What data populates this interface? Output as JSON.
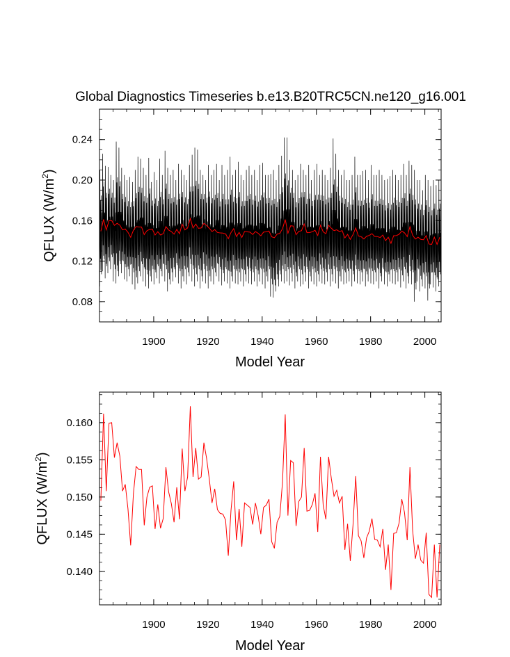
{
  "title": "Global Diagnostics Timeseries b.e13.B20TRC5CN.ne120_g16.001",
  "chart_data": [
    {
      "type": "line",
      "xlabel": "Model Year",
      "ylabel_main": "QFLUX (W/m",
      "ylabel_sup": "2",
      "ylabel_close": ")",
      "xlim": [
        1880,
        2006
      ],
      "ylim": [
        0.06,
        0.27
      ],
      "xticks": [
        1900,
        1920,
        1940,
        1960,
        1980,
        2000
      ],
      "yticks": [
        0.08,
        0.12,
        0.16,
        0.2,
        0.24
      ],
      "ytick_labels": [
        "0.08",
        "0.12",
        "0.16",
        "0.20",
        "0.24"
      ],
      "series": [
        {
          "color": "#000000",
          "kind": "monthly",
          "years": [
            1880,
            1881,
            1882,
            1883,
            1884,
            1885,
            1886,
            1887,
            1888,
            1889,
            1890,
            1891,
            1892,
            1893,
            1894,
            1895,
            1896,
            1897,
            1898,
            1899,
            1900,
            1901,
            1902,
            1903,
            1904,
            1905,
            1906,
            1907,
            1908,
            1909,
            1910,
            1911,
            1912,
            1913,
            1914,
            1915,
            1916,
            1917,
            1918,
            1919,
            1920,
            1921,
            1922,
            1923,
            1924,
            1925,
            1926,
            1927,
            1928,
            1929,
            1930,
            1931,
            1932,
            1933,
            1934,
            1935,
            1936,
            1937,
            1938,
            1939,
            1940,
            1941,
            1942,
            1943,
            1944,
            1945,
            1946,
            1947,
            1948,
            1949,
            1950,
            1951,
            1952,
            1953,
            1954,
            1955,
            1956,
            1957,
            1958,
            1959,
            1960,
            1961,
            1962,
            1963,
            1964,
            1965,
            1966,
            1967,
            1968,
            1969,
            1970,
            1971,
            1972,
            1973,
            1974,
            1975,
            1976,
            1977,
            1978,
            1979,
            1980,
            1981,
            1982,
            1983,
            1984,
            1985,
            1986,
            1987,
            1988,
            1989,
            1990,
            1991,
            1992,
            1993,
            1994,
            1995,
            1996,
            1997,
            1998,
            1999,
            2000,
            2001,
            2002,
            2003,
            2004,
            2005
          ],
          "maxima": [
            0.21,
            0.226,
            0.214,
            0.213,
            0.205,
            0.2,
            0.238,
            0.232,
            0.212,
            0.205,
            0.2,
            0.203,
            0.198,
            0.21,
            0.223,
            0.221,
            0.212,
            0.205,
            0.222,
            0.198,
            0.208,
            0.2,
            0.221,
            0.205,
            0.229,
            0.212,
            0.205,
            0.21,
            0.2,
            0.216,
            0.21,
            0.205,
            0.2,
            0.215,
            0.225,
            0.232,
            0.23,
            0.21,
            0.205,
            0.2,
            0.215,
            0.205,
            0.21,
            0.216,
            0.2,
            0.215,
            0.205,
            0.21,
            0.223,
            0.205,
            0.21,
            0.218,
            0.205,
            0.2,
            0.21,
            0.214,
            0.205,
            0.21,
            0.2,
            0.215,
            0.217,
            0.205,
            0.205,
            0.206,
            0.21,
            0.2,
            0.215,
            0.224,
            0.242,
            0.242,
            0.22,
            0.21,
            0.2,
            0.205,
            0.216,
            0.21,
            0.205,
            0.215,
            0.2,
            0.21,
            0.216,
            0.205,
            0.21,
            0.205,
            0.2,
            0.212,
            0.241,
            0.226,
            0.21,
            0.205,
            0.21,
            0.2,
            0.2,
            0.205,
            0.223,
            0.205,
            0.205,
            0.209,
            0.21,
            0.2,
            0.215,
            0.205,
            0.205,
            0.21,
            0.205,
            0.2,
            0.201,
            0.204,
            0.21,
            0.205,
            0.2,
            0.205,
            0.216,
            0.205,
            0.219,
            0.215,
            0.21,
            0.2,
            0.2,
            0.19,
            0.205,
            0.2,
            0.194,
            0.2,
            0.195,
            0.2
          ],
          "minima": [
            0.095,
            0.11,
            0.103,
            0.108,
            0.112,
            0.1,
            0.098,
            0.105,
            0.108,
            0.102,
            0.1,
            0.105,
            0.097,
            0.092,
            0.098,
            0.105,
            0.1,
            0.095,
            0.093,
            0.1,
            0.097,
            0.103,
            0.098,
            0.105,
            0.1,
            0.09,
            0.097,
            0.1,
            0.104,
            0.098,
            0.093,
            0.1,
            0.097,
            0.105,
            0.1,
            0.095,
            0.1,
            0.093,
            0.1,
            0.098,
            0.093,
            0.1,
            0.097,
            0.105,
            0.1,
            0.096,
            0.1,
            0.098,
            0.093,
            0.1,
            0.098,
            0.097,
            0.1,
            0.095,
            0.1,
            0.098,
            0.097,
            0.1,
            0.095,
            0.1,
            0.097,
            0.093,
            0.1,
            0.085,
            0.084,
            0.09,
            0.095,
            0.1,
            0.098,
            0.1,
            0.096,
            0.1,
            0.093,
            0.1,
            0.095,
            0.097,
            0.1,
            0.093,
            0.1,
            0.097,
            0.095,
            0.1,
            0.098,
            0.097,
            0.1,
            0.095,
            0.1,
            0.098,
            0.093,
            0.1,
            0.097,
            0.098,
            0.1,
            0.095,
            0.1,
            0.098,
            0.097,
            0.1,
            0.095,
            0.1,
            0.098,
            0.097,
            0.1,
            0.093,
            0.1,
            0.097,
            0.095,
            0.1,
            0.098,
            0.097,
            0.1,
            0.094,
            0.1,
            0.093,
            0.098,
            0.097,
            0.08,
            0.1,
            0.09,
            0.095,
            0.093,
            0.081,
            0.097,
            0.094,
            0.09,
            0.095
          ]
        },
        {
          "color": "#ff0000",
          "kind": "annual"
        }
      ]
    },
    {
      "type": "line",
      "xlabel": "Model Year",
      "ylabel_main": "QFLUX (W/m",
      "ylabel_sup": "2",
      "ylabel_close": ")",
      "xlim": [
        1880,
        2006
      ],
      "ylim": [
        0.1355,
        0.1641
      ],
      "xticks": [
        1900,
        1920,
        1940,
        1960,
        1980,
        2000
      ],
      "yticks": [
        0.14,
        0.145,
        0.15,
        0.155,
        0.16
      ],
      "ytick_labels": [
        "0.140",
        "0.145",
        "0.150",
        "0.155",
        "0.160"
      ],
      "series": [
        {
          "color": "#ff0000",
          "x": [
            1880,
            1881,
            1882,
            1883,
            1884,
            1885,
            1886,
            1887,
            1888,
            1889,
            1890,
            1891,
            1892,
            1893,
            1894,
            1895,
            1896,
            1897,
            1898,
            1899,
            1900,
            1901,
            1902,
            1903,
            1904,
            1905,
            1906,
            1907,
            1908,
            1909,
            1910,
            1911,
            1912,
            1913,
            1914,
            1915,
            1916,
            1917,
            1918,
            1919,
            1920,
            1921,
            1922,
            1923,
            1924,
            1925,
            1926,
            1927,
            1928,
            1929,
            1930,
            1931,
            1932,
            1933,
            1934,
            1935,
            1936,
            1937,
            1938,
            1939,
            1940,
            1941,
            1942,
            1943,
            1944,
            1945,
            1946,
            1947,
            1948,
            1949,
            1950,
            1951,
            1952,
            1953,
            1954,
            1955,
            1956,
            1957,
            1958,
            1959,
            1960,
            1961,
            1962,
            1963,
            1964,
            1965,
            1966,
            1967,
            1968,
            1969,
            1970,
            1971,
            1972,
            1973,
            1974,
            1975,
            1976,
            1977,
            1978,
            1979,
            1980,
            1981,
            1982,
            1983,
            1984,
            1985,
            1986,
            1987,
            1988,
            1989,
            1990,
            1991,
            1992,
            1993,
            1994,
            1995,
            1996,
            1997,
            1998,
            1999,
            2000,
            2001,
            2002,
            2003,
            2004,
            2005
          ],
          "values": [
            0.1495,
            0.1612,
            0.1508,
            0.1599,
            0.16,
            0.1553,
            0.1573,
            0.1555,
            0.1508,
            0.1517,
            0.1484,
            0.1435,
            0.1504,
            0.1541,
            0.1537,
            0.1537,
            0.1462,
            0.15,
            0.1513,
            0.1515,
            0.1457,
            0.149,
            0.1458,
            0.1471,
            0.154,
            0.1507,
            0.1491,
            0.1466,
            0.1513,
            0.147,
            0.1565,
            0.1508,
            0.1527,
            0.1622,
            0.1527,
            0.1566,
            0.1524,
            0.1527,
            0.1573,
            0.1552,
            0.1524,
            0.1492,
            0.1511,
            0.1483,
            0.1478,
            0.1477,
            0.1469,
            0.1421,
            0.1482,
            0.1521,
            0.1442,
            0.1484,
            0.1433,
            0.1492,
            0.1489,
            0.1486,
            0.1463,
            0.1492,
            0.1475,
            0.145,
            0.1486,
            0.1489,
            0.1497,
            0.144,
            0.1431,
            0.1466,
            0.1474,
            0.152,
            0.1611,
            0.1475,
            0.1549,
            0.1546,
            0.1461,
            0.1494,
            0.15,
            0.1566,
            0.1481,
            0.1482,
            0.149,
            0.1505,
            0.1453,
            0.1554,
            0.1489,
            0.147,
            0.1554,
            0.1525,
            0.1501,
            0.1509,
            0.1492,
            0.1501,
            0.1429,
            0.1464,
            0.1414,
            0.1462,
            0.1528,
            0.1448,
            0.1441,
            0.1418,
            0.1445,
            0.1454,
            0.1471,
            0.1443,
            0.1442,
            0.1433,
            0.1457,
            0.1402,
            0.1436,
            0.1375,
            0.1451,
            0.1452,
            0.1465,
            0.1497,
            0.1479,
            0.1442,
            0.154,
            0.1455,
            0.1417,
            0.1436,
            0.1415,
            0.1411,
            0.1452,
            0.1369,
            0.1365,
            0.1436,
            0.1365,
            0.1436
          ]
        }
      ]
    }
  ]
}
